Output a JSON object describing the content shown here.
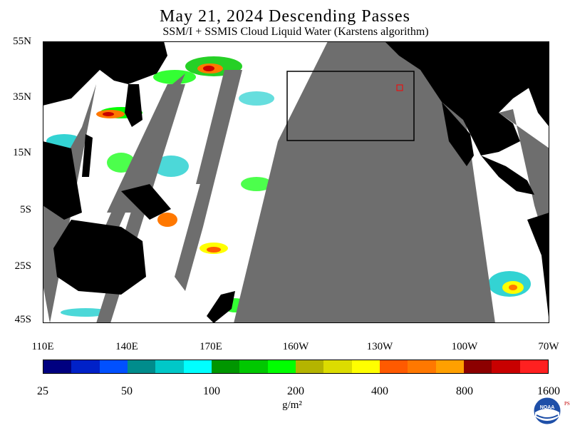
{
  "header": {
    "title": "May 21, 2024  Descending Passes",
    "subtitle": "SSM/I + SSMIS Cloud Liquid Water (Karstens algorithm)"
  },
  "map": {
    "lat_labels": [
      "55N",
      "35N",
      "15N",
      "5S",
      "25S",
      "45S"
    ],
    "lon_labels": [
      "110E",
      "140E",
      "170E",
      "160W",
      "130W",
      "100W",
      "70W"
    ],
    "colors": {
      "land": "#000000",
      "no_data": "#6e6e6e",
      "ocean_clear": "#ffffff",
      "box": "#000000",
      "station": "#ff0000"
    }
  },
  "colorbar": {
    "colors": [
      "#000080",
      "#0021c8",
      "#0050ff",
      "#008c8c",
      "#00c8c8",
      "#00ffff",
      "#009600",
      "#00c800",
      "#00ff00",
      "#b4b400",
      "#dcdc00",
      "#ffff00",
      "#ff5a00",
      "#ff7800",
      "#ffa000",
      "#8c0000",
      "#c80000",
      "#ff2020"
    ],
    "tick_labels": [
      "25",
      "50",
      "100",
      "200",
      "400",
      "800",
      "1600"
    ],
    "units": "g/m²"
  },
  "logo": {
    "text": "NOAA",
    "side_text": "PSL"
  }
}
